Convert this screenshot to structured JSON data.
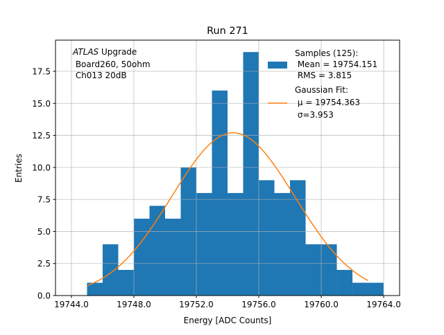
{
  "chart_data": {
    "type": "bar",
    "title": "Run 271",
    "xlabel": "Energy [ADC Counts]",
    "ylabel": "Entries",
    "xlim": [
      19742.98,
      19765.02
    ],
    "ylim": [
      0,
      19.93
    ],
    "grid": true,
    "legend_placement": "top-right",
    "x_ticks": [
      19744,
      19748,
      19752,
      19756,
      19760,
      19764
    ],
    "x_tick_labels": [
      "19744.0",
      "19748.0",
      "19752.0",
      "19756.0",
      "19760.0",
      "19764.0"
    ],
    "y_ticks": [
      0,
      2.5,
      5,
      7.5,
      10,
      12.5,
      15,
      17.5
    ],
    "y_tick_labels": [
      "0.0",
      "2.5",
      "5.0",
      "7.5",
      "10.0",
      "12.5",
      "15.0",
      "17.5"
    ],
    "annotation": {
      "italic": "ATLAS",
      "rest": " Upgrade",
      "line2": " Board260, 50ohm",
      "line3": " Ch013 20dB"
    },
    "histogram": {
      "bin_edges": [
        19745,
        19746,
        19747,
        19748,
        19749,
        19750,
        19751,
        19752,
        19753,
        19754,
        19755,
        19756,
        19757,
        19758,
        19759,
        19760,
        19761,
        19762,
        19763,
        19764
      ],
      "counts": [
        1,
        4,
        2,
        6,
        7,
        6,
        10,
        8,
        16,
        8,
        19,
        9,
        8,
        9,
        4,
        4,
        2,
        1,
        1
      ],
      "color": "#1f77b4",
      "legend": [
        "Samples (125):",
        " Mean = 19754.151",
        " RMS = 3.815"
      ]
    },
    "fit": {
      "amplitude": 12.7,
      "mu": 19754.363,
      "sigma": 3.953,
      "x_range": [
        19745.07,
        19763.0
      ],
      "color": "#ff7f0e",
      "legend": [
        "Gaussian Fit:",
        " μ = 19754.363",
        " σ=3.953"
      ]
    }
  }
}
